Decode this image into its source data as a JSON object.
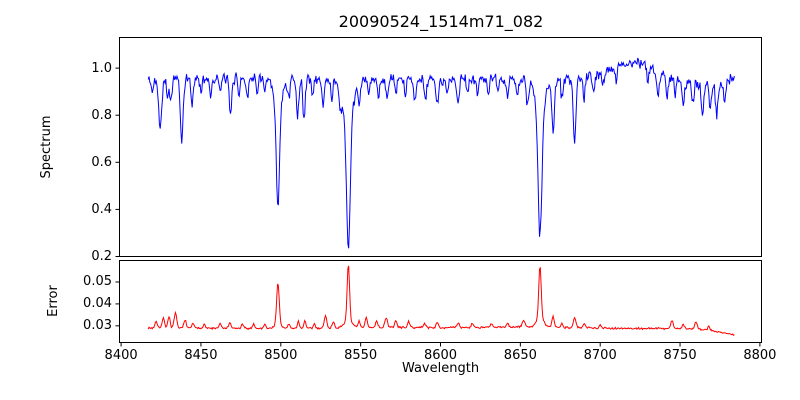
{
  "figure": {
    "background": "#ffffff",
    "text_color": "#000000",
    "frame_color": "#000000"
  },
  "chart_data": [
    {
      "id": "spectrum",
      "type": "line",
      "title": "20090524_1514m71_082",
      "ylabel": "Spectrum",
      "line_color": "#0000ff",
      "grid": false,
      "legend": "none",
      "xlim": [
        8399,
        8801
      ],
      "ylim": [
        0.2,
        1.13
      ],
      "ytick_values": [
        1.0,
        0.8,
        0.6,
        0.4,
        0.2
      ],
      "ytick_labels": [
        "1.0",
        "0.8",
        "0.6",
        "0.4",
        "0.2"
      ],
      "series": {
        "x_start": 8417,
        "x_end": 8784,
        "x_step": 0.5,
        "noise_amplitude": 0.028,
        "noise_seed": 42,
        "continuum_anchors": [
          [
            8417,
            0.95
          ],
          [
            8435,
            0.957
          ],
          [
            8455,
            0.954
          ],
          [
            8480,
            0.96
          ],
          [
            8505,
            0.957
          ],
          [
            8530,
            0.95
          ],
          [
            8555,
            0.948
          ],
          [
            8580,
            0.952
          ],
          [
            8605,
            0.95
          ],
          [
            8630,
            0.955
          ],
          [
            8655,
            0.956
          ],
          [
            8680,
            0.95
          ],
          [
            8695,
            0.968
          ],
          [
            8708,
            1.0
          ],
          [
            8718,
            1.025
          ],
          [
            8727,
            1.015
          ],
          [
            8735,
            0.99
          ],
          [
            8745,
            0.96
          ],
          [
            8757,
            0.935
          ],
          [
            8771,
            0.928
          ],
          [
            8784,
            0.962
          ]
        ],
        "features": [
          [
            8419.5,
            -0.06,
            0.6
          ],
          [
            8424.5,
            -0.21,
            0.9
          ],
          [
            8429,
            -0.07,
            0.6
          ],
          [
            8431,
            -0.1,
            0.7
          ],
          [
            8438,
            -0.27,
            0.9
          ],
          [
            8444.5,
            -0.11,
            0.7
          ],
          [
            8450,
            -0.05,
            0.6
          ],
          [
            8456,
            -0.07,
            0.6
          ],
          [
            8462,
            -0.06,
            0.6
          ],
          [
            8468.5,
            -0.16,
            0.8
          ],
          [
            8474,
            -0.07,
            0.6
          ],
          [
            8479,
            -0.08,
            0.7
          ],
          [
            8485,
            -0.06,
            0.6
          ],
          [
            8490,
            -0.07,
            0.6
          ],
          [
            8498.2,
            -0.43,
            1.0
          ],
          [
            8498.2,
            -0.12,
            2.8
          ],
          [
            8505,
            -0.08,
            0.6
          ],
          [
            8510.5,
            -0.17,
            0.7
          ],
          [
            8514.5,
            -0.18,
            0.7
          ],
          [
            8520,
            -0.07,
            0.6
          ],
          [
            8526.5,
            -0.11,
            0.7
          ],
          [
            8532,
            -0.08,
            0.6
          ],
          [
            8537.5,
            -0.09,
            0.8
          ],
          [
            8542.3,
            -0.55,
            1.2
          ],
          [
            8542.3,
            -0.16,
            3.2
          ],
          [
            8549,
            -0.09,
            0.6
          ],
          [
            8555,
            -0.06,
            0.6
          ],
          [
            8561,
            -0.07,
            0.6
          ],
          [
            8566.5,
            -0.08,
            0.7
          ],
          [
            8572,
            -0.06,
            0.6
          ],
          [
            8578,
            -0.07,
            0.6
          ],
          [
            8584,
            -0.08,
            0.7
          ],
          [
            8590.5,
            -0.09,
            0.7
          ],
          [
            8598,
            -0.11,
            0.8
          ],
          [
            8604,
            -0.06,
            0.6
          ],
          [
            8611,
            -0.1,
            0.7
          ],
          [
            8617,
            -0.06,
            0.6
          ],
          [
            8623,
            -0.07,
            0.6
          ],
          [
            8630,
            -0.07,
            0.6
          ],
          [
            8636,
            -0.06,
            0.6
          ],
          [
            8642,
            -0.08,
            0.7
          ],
          [
            8648,
            -0.09,
            0.7
          ],
          [
            8654.5,
            -0.11,
            0.8
          ],
          [
            8662.3,
            -0.52,
            1.15
          ],
          [
            8662.3,
            -0.15,
            3.0
          ],
          [
            8670.5,
            -0.22,
            0.8
          ],
          [
            8676,
            -0.08,
            0.6
          ],
          [
            8684,
            -0.27,
            0.9
          ],
          [
            8690,
            -0.09,
            0.6
          ],
          [
            8696,
            -0.08,
            0.7
          ],
          [
            8702,
            -0.06,
            0.6
          ],
          [
            8710,
            -0.05,
            0.6
          ],
          [
            8730,
            -0.06,
            0.6
          ],
          [
            8736,
            -0.1,
            0.8
          ],
          [
            8742,
            -0.08,
            0.7
          ],
          [
            8747,
            -0.07,
            0.6
          ],
          [
            8752,
            -0.1,
            0.8
          ],
          [
            8758,
            -0.09,
            0.7
          ],
          [
            8764,
            -0.12,
            0.8
          ],
          [
            8769,
            -0.1,
            0.7
          ],
          [
            8773,
            -0.13,
            0.8
          ],
          [
            8778,
            -0.09,
            0.7
          ]
        ]
      }
    },
    {
      "id": "error",
      "type": "line",
      "ylabel": "Error",
      "xlabel": "Wavelength",
      "line_color": "#ff0000",
      "grid": false,
      "legend": "none",
      "xlim": [
        8399,
        8801
      ],
      "ylim": [
        0.0224,
        0.0598
      ],
      "ytick_values": [
        0.05,
        0.04,
        0.03
      ],
      "ytick_labels": [
        "0.05",
        "0.04",
        "0.03"
      ],
      "xtick_values": [
        8400,
        8450,
        8500,
        8550,
        8600,
        8650,
        8700,
        8750,
        8800
      ],
      "xtick_labels": [
        "8400",
        "8450",
        "8500",
        "8550",
        "8600",
        "8650",
        "8700",
        "8750",
        "8800"
      ],
      "series": {
        "x_start": 8417,
        "x_end": 8784,
        "x_step": 0.5,
        "noise_amplitude": 0.00055,
        "noise_seed": 7,
        "continuum_anchors": [
          [
            8417,
            0.029
          ],
          [
            8450,
            0.0289
          ],
          [
            8480,
            0.0288
          ],
          [
            8510,
            0.0288
          ],
          [
            8540,
            0.0291
          ],
          [
            8570,
            0.0293
          ],
          [
            8600,
            0.0292
          ],
          [
            8630,
            0.0293
          ],
          [
            8660,
            0.0295
          ],
          [
            8690,
            0.0291
          ],
          [
            8720,
            0.0288
          ],
          [
            8745,
            0.0288
          ],
          [
            8762,
            0.0285
          ],
          [
            8775,
            0.0272
          ],
          [
            8784,
            0.0258
          ]
        ],
        "features": [
          [
            8422,
            0.003,
            0.8
          ],
          [
            8426.5,
            0.005,
            0.7
          ],
          [
            8430,
            0.0055,
            0.7
          ],
          [
            8434,
            0.0068,
            0.8
          ],
          [
            8440,
            0.004,
            0.7
          ],
          [
            8445,
            0.0025,
            0.6
          ],
          [
            8452,
            0.002,
            0.7
          ],
          [
            8462,
            0.002,
            0.7
          ],
          [
            8468,
            0.0022,
            0.8
          ],
          [
            8476,
            0.0018,
            0.7
          ],
          [
            8483,
            0.002,
            0.7
          ],
          [
            8490,
            0.002,
            0.7
          ],
          [
            8498.2,
            0.0185,
            0.8
          ],
          [
            8498.2,
            0.002,
            2.0
          ],
          [
            8505,
            0.002,
            0.7
          ],
          [
            8511,
            0.0035,
            0.6
          ],
          [
            8515,
            0.0035,
            0.6
          ],
          [
            8521,
            0.002,
            0.6
          ],
          [
            8528,
            0.0055,
            0.8
          ],
          [
            8533,
            0.003,
            0.7
          ],
          [
            8542.3,
            0.0255,
            0.75
          ],
          [
            8542.3,
            0.0035,
            2.2
          ],
          [
            8549,
            0.003,
            0.6
          ],
          [
            8553.5,
            0.0045,
            0.7
          ],
          [
            8560,
            0.003,
            0.7
          ],
          [
            8566,
            0.0045,
            0.8
          ],
          [
            8572,
            0.003,
            0.7
          ],
          [
            8580,
            0.0025,
            0.7
          ],
          [
            8590,
            0.002,
            0.7
          ],
          [
            8598,
            0.0022,
            0.7
          ],
          [
            8611,
            0.002,
            0.7
          ],
          [
            8620,
            0.0018,
            0.7
          ],
          [
            8632,
            0.0015,
            0.7
          ],
          [
            8642,
            0.002,
            0.7
          ],
          [
            8652,
            0.003,
            0.9
          ],
          [
            8662.3,
            0.0235,
            0.75
          ],
          [
            8662.3,
            0.0043,
            2.2
          ],
          [
            8670.5,
            0.005,
            0.7
          ],
          [
            8676,
            0.002,
            0.6
          ],
          [
            8684,
            0.0045,
            0.8
          ],
          [
            8690,
            0.002,
            0.6
          ],
          [
            8700,
            0.0015,
            0.7
          ],
          [
            8745,
            0.0035,
            0.8
          ],
          [
            8752,
            0.002,
            0.7
          ],
          [
            8760,
            0.0035,
            0.8
          ],
          [
            8768,
            0.002,
            0.7
          ]
        ]
      }
    }
  ]
}
